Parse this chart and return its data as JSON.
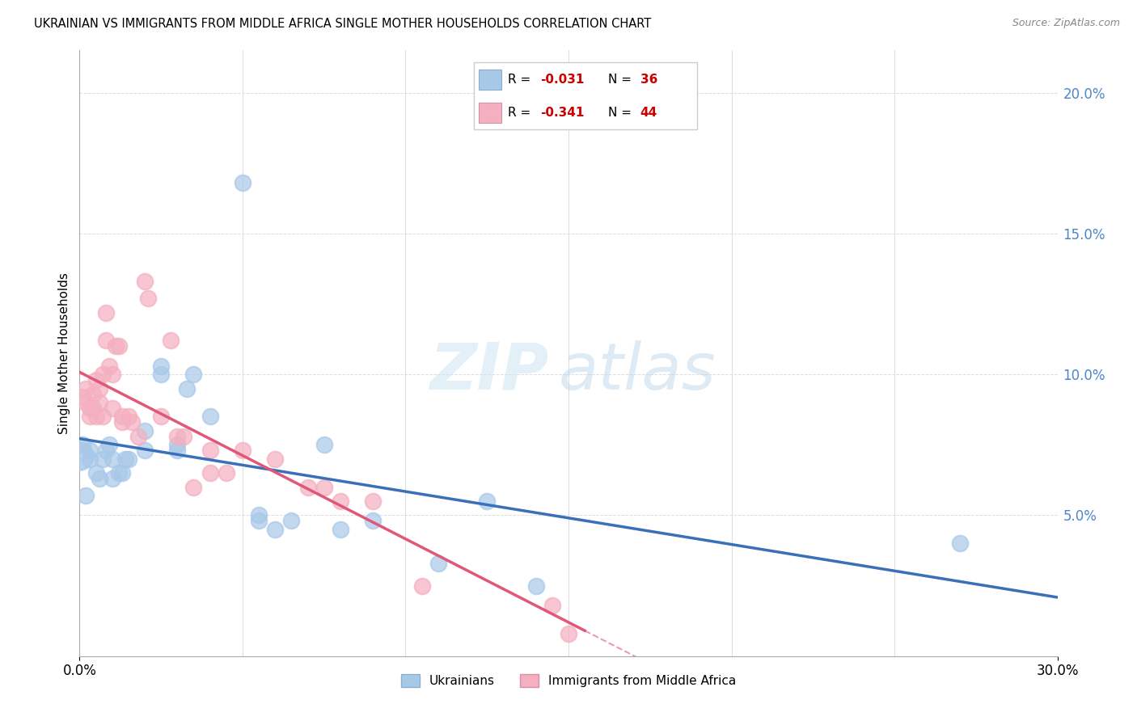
{
  "title": "UKRAINIAN VS IMMIGRANTS FROM MIDDLE AFRICA SINGLE MOTHER HOUSEHOLDS CORRELATION CHART",
  "source": "Source: ZipAtlas.com",
  "ylabel": "Single Mother Households",
  "blue_color": "#a8c8e8",
  "pink_color": "#f4afc0",
  "blue_line_color": "#3a6fba",
  "pink_line_color": "#e05878",
  "pink_line_dash": [
    6,
    3
  ],
  "xlim": [
    0.0,
    0.3
  ],
  "ylim": [
    0.0,
    0.215
  ],
  "right_ytick_vals": [
    0.05,
    0.1,
    0.15,
    0.2
  ],
  "legend_blue_r": "-0.031",
  "legend_blue_n": "36",
  "legend_pink_r": "-0.341",
  "legend_pink_n": "44",
  "watermark_zip": "ZIP",
  "watermark_atlas": "atlas",
  "blue_scatter": [
    [
      0.001,
      0.075
    ],
    [
      0.002,
      0.057
    ],
    [
      0.003,
      0.07
    ],
    [
      0.003,
      0.073
    ],
    [
      0.005,
      0.065
    ],
    [
      0.006,
      0.063
    ],
    [
      0.007,
      0.07
    ],
    [
      0.008,
      0.073
    ],
    [
      0.009,
      0.075
    ],
    [
      0.01,
      0.063
    ],
    [
      0.01,
      0.07
    ],
    [
      0.012,
      0.065
    ],
    [
      0.013,
      0.065
    ],
    [
      0.014,
      0.07
    ],
    [
      0.015,
      0.07
    ],
    [
      0.02,
      0.08
    ],
    [
      0.02,
      0.073
    ],
    [
      0.025,
      0.1
    ],
    [
      0.025,
      0.103
    ],
    [
      0.03,
      0.075
    ],
    [
      0.03,
      0.073
    ],
    [
      0.033,
      0.095
    ],
    [
      0.035,
      0.1
    ],
    [
      0.04,
      0.085
    ],
    [
      0.05,
      0.168
    ],
    [
      0.055,
      0.05
    ],
    [
      0.055,
      0.048
    ],
    [
      0.06,
      0.045
    ],
    [
      0.065,
      0.048
    ],
    [
      0.075,
      0.075
    ],
    [
      0.08,
      0.045
    ],
    [
      0.09,
      0.048
    ],
    [
      0.11,
      0.033
    ],
    [
      0.125,
      0.055
    ],
    [
      0.14,
      0.025
    ],
    [
      0.27,
      0.04
    ]
  ],
  "pink_scatter": [
    [
      0.001,
      0.092
    ],
    [
      0.002,
      0.09
    ],
    [
      0.002,
      0.095
    ],
    [
      0.003,
      0.088
    ],
    [
      0.003,
      0.085
    ],
    [
      0.004,
      0.093
    ],
    [
      0.004,
      0.088
    ],
    [
      0.005,
      0.098
    ],
    [
      0.005,
      0.085
    ],
    [
      0.006,
      0.09
    ],
    [
      0.006,
      0.095
    ],
    [
      0.007,
      0.1
    ],
    [
      0.007,
      0.085
    ],
    [
      0.008,
      0.122
    ],
    [
      0.008,
      0.112
    ],
    [
      0.009,
      0.103
    ],
    [
      0.01,
      0.1
    ],
    [
      0.01,
      0.088
    ],
    [
      0.011,
      0.11
    ],
    [
      0.012,
      0.11
    ],
    [
      0.013,
      0.085
    ],
    [
      0.013,
      0.083
    ],
    [
      0.015,
      0.085
    ],
    [
      0.016,
      0.083
    ],
    [
      0.018,
      0.078
    ],
    [
      0.02,
      0.133
    ],
    [
      0.021,
      0.127
    ],
    [
      0.025,
      0.085
    ],
    [
      0.028,
      0.112
    ],
    [
      0.03,
      0.078
    ],
    [
      0.032,
      0.078
    ],
    [
      0.035,
      0.06
    ],
    [
      0.04,
      0.065
    ],
    [
      0.04,
      0.073
    ],
    [
      0.045,
      0.065
    ],
    [
      0.05,
      0.073
    ],
    [
      0.06,
      0.07
    ],
    [
      0.07,
      0.06
    ],
    [
      0.075,
      0.06
    ],
    [
      0.08,
      0.055
    ],
    [
      0.09,
      0.055
    ],
    [
      0.105,
      0.025
    ],
    [
      0.145,
      0.018
    ],
    [
      0.15,
      0.008
    ]
  ]
}
